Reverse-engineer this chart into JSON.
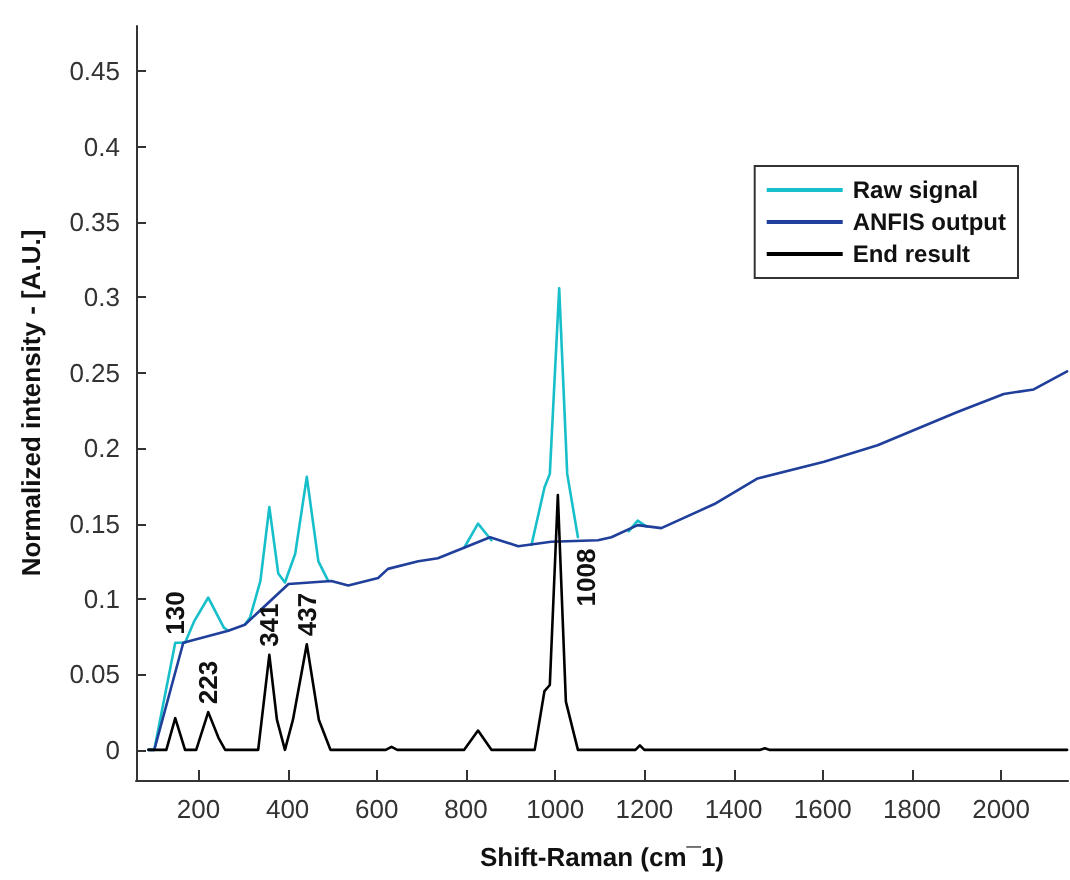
{
  "chart_data": {
    "type": "line",
    "xlabel": "Shift-Raman (cm¯1)",
    "ylabel": "Normalized intensity - [A.U.]",
    "xlim": [
      60,
      2150
    ],
    "xticks": [
      200,
      400,
      600,
      800,
      1000,
      1200,
      1400,
      1600,
      1800,
      2000
    ],
    "ylim": [
      -0.02,
      0.48
    ],
    "yticks": [
      0,
      0.05,
      0.1,
      0.15,
      0.2,
      0.25,
      0.3,
      0.35,
      0.4,
      0.45
    ],
    "grid": false,
    "legend": "top right",
    "marker": "none",
    "line_style": "solid",
    "series": [
      {
        "name": "Raw signal",
        "color": "#17bfcb",
        "x": [
          88,
          101,
          148,
          170,
          190,
          222,
          257,
          267,
          280,
          304,
          316,
          339,
          359,
          379,
          394,
          417,
          443,
          469,
          491,
          600,
          796,
          827,
          857,
          900,
          947,
          976,
          988,
          1009,
          1027,
          1051,
          1100,
          1165,
          1185,
          1205
        ],
        "values": [
          0,
          0,
          0.071,
          0.071,
          0.085,
          0.101,
          0.081,
          0.079,
          null,
          0.083,
          0.088,
          0.112,
          0.161,
          0.117,
          0.111,
          0.13,
          0.181,
          0.125,
          0.112,
          null,
          0.134,
          0.15,
          0.139,
          null,
          0.136,
          0.174,
          0.183,
          0.306,
          0.183,
          0.141,
          null,
          0.145,
          0.152,
          0.148
        ]
      },
      {
        "name": "ANFIS output",
        "color": "#1f3f9b",
        "x": [
          88,
          101,
          166,
          267,
          304,
          402,
          498,
          536,
          603,
          625,
          693,
          737,
          854,
          917,
          991,
          1096,
          1126,
          1185,
          1238,
          1357,
          1454,
          1603,
          1723,
          1902,
          2006,
          2073,
          2148
        ],
        "values": [
          0,
          0,
          0.071,
          0.079,
          0.083,
          0.11,
          0.112,
          0.109,
          0.114,
          0.12,
          0.125,
          0.127,
          0.141,
          0.135,
          0.138,
          0.139,
          0.141,
          0.149,
          0.147,
          0.163,
          0.18,
          0.191,
          0.202,
          0.224,
          0.236,
          0.239,
          0.251
        ]
      },
      {
        "name": "End result",
        "color": "#000000",
        "x": [
          88,
          128,
          148,
          170,
          195,
          222,
          245,
          260,
          334,
          359,
          376,
          394,
          412,
          443,
          470,
          496,
          620,
          633,
          646,
          796,
          827,
          857,
          954,
          976,
          988,
          1006,
          1024,
          1051,
          1180,
          1190,
          1200,
          1460,
          1470,
          1480,
          2148
        ],
        "values": [
          0,
          0,
          0.021,
          0,
          0,
          0.025,
          0.008,
          0,
          0,
          0.063,
          0.02,
          0,
          0.02,
          0.07,
          0.02,
          0,
          0,
          0.002,
          0,
          0,
          0.0128,
          0,
          0,
          0.039,
          0.043,
          0.169,
          0.032,
          0,
          0,
          0.003,
          0,
          0,
          0.001,
          0,
          0
        ]
      }
    ],
    "annotations": [
      {
        "text": "130",
        "x": 148,
        "y": 0.071
      },
      {
        "text": "223",
        "x": 222,
        "y": 0.025
      },
      {
        "text": "341",
        "x": 359,
        "y": 0.063
      },
      {
        "text": "437",
        "x": 443,
        "y": 0.07
      },
      {
        "text": "1008",
        "x": 1006,
        "y": 0.169
      }
    ]
  }
}
